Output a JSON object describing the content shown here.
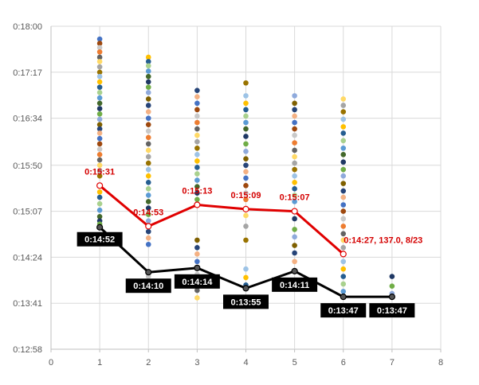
{
  "chart_data": {
    "type": "scatter",
    "x_ticks": [
      "0",
      "1",
      "2",
      "3",
      "4",
      "5",
      "6",
      "7",
      "8"
    ],
    "y_ticks": [
      "0:12:58",
      "0:13:41",
      "0:14:24",
      "0:15:07",
      "0:15:50",
      "0:16:34",
      "0:17:17",
      "0:18:00"
    ],
    "xlim": [
      0,
      8
    ],
    "ylim": [
      "0:12:58",
      "0:18:00"
    ],
    "grid": true,
    "scatter_colors": [
      "#4472c4",
      "#ed7d31",
      "#a5a5a5",
      "#ffc000",
      "#5b9bd5",
      "#70ad47",
      "#264478",
      "#9e480e",
      "#636363",
      "#997300",
      "#255e91",
      "#43682b",
      "#8faadc",
      "#f4b183",
      "#c9c9c9",
      "#ffd966",
      "#9dc3e6",
      "#a9d18e",
      "#1f3864",
      "#7f6000"
    ],
    "scatter_points": [
      {
        "x": 1,
        "y": [
          "0:17:48",
          "0:17:44",
          "0:17:40",
          "0:17:36",
          "0:17:31",
          "0:17:27",
          "0:17:22",
          "0:17:17",
          "0:17:13",
          "0:17:08",
          "0:17:03",
          "0:16:58",
          "0:16:53",
          "0:16:48",
          "0:16:43",
          "0:16:38",
          "0:16:33",
          "0:16:28",
          "0:16:24",
          "0:16:20",
          "0:16:15",
          "0:16:10",
          "0:16:05",
          "0:16:00",
          "0:15:55",
          "0:15:50",
          "0:15:45",
          "0:15:40",
          "0:15:31",
          "0:15:25",
          "0:15:20",
          "0:15:14",
          "0:15:08",
          "0:15:02",
          "0:14:58",
          "0:14:55",
          "0:14:52"
        ]
      },
      {
        "x": 2,
        "y": [
          "0:17:31",
          "0:17:27",
          "0:17:23",
          "0:17:18",
          "0:17:13",
          "0:17:08",
          "0:17:03",
          "0:16:58",
          "0:16:52",
          "0:16:46",
          "0:16:40",
          "0:16:34",
          "0:16:28",
          "0:16:22",
          "0:16:16",
          "0:16:10",
          "0:16:04",
          "0:15:58",
          "0:15:52",
          "0:15:46",
          "0:15:40",
          "0:15:34",
          "0:15:28",
          "0:15:22",
          "0:15:16",
          "0:15:10",
          "0:15:04",
          "0:14:58",
          "0:14:53",
          "0:14:48",
          "0:14:42",
          "0:14:36",
          "0:14:10",
          "0:14:06"
        ]
      },
      {
        "x": 3,
        "y": [
          "0:17:00",
          "0:16:54",
          "0:16:48",
          "0:16:42",
          "0:16:36",
          "0:16:30",
          "0:16:24",
          "0:16:18",
          "0:16:12",
          "0:16:06",
          "0:16:00",
          "0:15:54",
          "0:15:48",
          "0:15:42",
          "0:15:36",
          "0:15:30",
          "0:15:24",
          "0:15:18",
          "0:15:13",
          "0:14:40",
          "0:14:33",
          "0:14:27",
          "0:14:20",
          "0:14:14",
          "0:14:08",
          "0:14:00",
          "0:13:53",
          "0:13:46"
        ]
      },
      {
        "x": 4,
        "y": [
          "0:17:07",
          "0:16:55",
          "0:16:48",
          "0:16:42",
          "0:16:36",
          "0:16:30",
          "0:16:24",
          "0:16:17",
          "0:16:10",
          "0:16:03",
          "0:15:56",
          "0:15:50",
          "0:15:44",
          "0:15:38",
          "0:15:31",
          "0:15:24",
          "0:15:18",
          "0:15:09",
          "0:15:03",
          "0:14:53",
          "0:14:40",
          "0:14:13",
          "0:14:05",
          "0:13:58",
          "0:13:55"
        ]
      },
      {
        "x": 5,
        "y": [
          "0:16:55",
          "0:16:48",
          "0:16:42",
          "0:16:36",
          "0:16:30",
          "0:16:24",
          "0:16:18",
          "0:16:11",
          "0:16:04",
          "0:15:58",
          "0:15:52",
          "0:15:46",
          "0:15:40",
          "0:15:34",
          "0:15:28",
          "0:15:22",
          "0:15:16",
          "0:15:07",
          "0:15:00",
          "0:14:50",
          "0:14:43",
          "0:14:35",
          "0:14:28",
          "0:14:20",
          "0:14:11"
        ]
      },
      {
        "x": 6,
        "y": [
          "0:16:52",
          "0:16:46",
          "0:16:40",
          "0:16:33",
          "0:16:26",
          "0:16:20",
          "0:16:13",
          "0:16:06",
          "0:16:00",
          "0:15:53",
          "0:15:46",
          "0:15:40",
          "0:15:33",
          "0:15:26",
          "0:15:20",
          "0:15:13",
          "0:15:07",
          "0:15:00",
          "0:14:53",
          "0:14:46",
          "0:14:40",
          "0:14:33",
          "0:14:27",
          "0:14:20",
          "0:14:13",
          "0:14:06",
          "0:13:59",
          "0:13:52",
          "0:13:47"
        ]
      },
      {
        "x": 7,
        "y": [
          "0:14:06",
          "0:13:57",
          "0:13:50",
          "0:13:47"
        ]
      }
    ],
    "series": [
      {
        "color": "#e00000",
        "points": [
          {
            "x": 1,
            "y": "0:15:31",
            "label": "0:15:31"
          },
          {
            "x": 2,
            "y": "0:14:53",
            "label": "0:14:53"
          },
          {
            "x": 3,
            "y": "0:15:13",
            "label": "0:15:13"
          },
          {
            "x": 4,
            "y": "0:15:09",
            "label": "0:15:09"
          },
          {
            "x": 5,
            "y": "0:15:07",
            "label": "0:15:07"
          },
          {
            "x": 6,
            "y": "0:14:27",
            "label": "0:14:27, 137.0, 8/23"
          }
        ]
      },
      {
        "color": "#000000",
        "points": [
          {
            "x": 1,
            "y": "0:14:52",
            "label": "0:14:52"
          },
          {
            "x": 2,
            "y": "0:14:10",
            "label": "0:14:10"
          },
          {
            "x": 3,
            "y": "0:14:14",
            "label": "0:14:14"
          },
          {
            "x": 4,
            "y": "0:13:55",
            "label": "0:13:55"
          },
          {
            "x": 5,
            "y": "0:14:11",
            "label": "0:14:11"
          },
          {
            "x": 6,
            "y": "0:13:47",
            "label": "0:13:47"
          },
          {
            "x": 7,
            "y": "0:13:47",
            "label": "0:13:47"
          }
        ]
      }
    ]
  }
}
